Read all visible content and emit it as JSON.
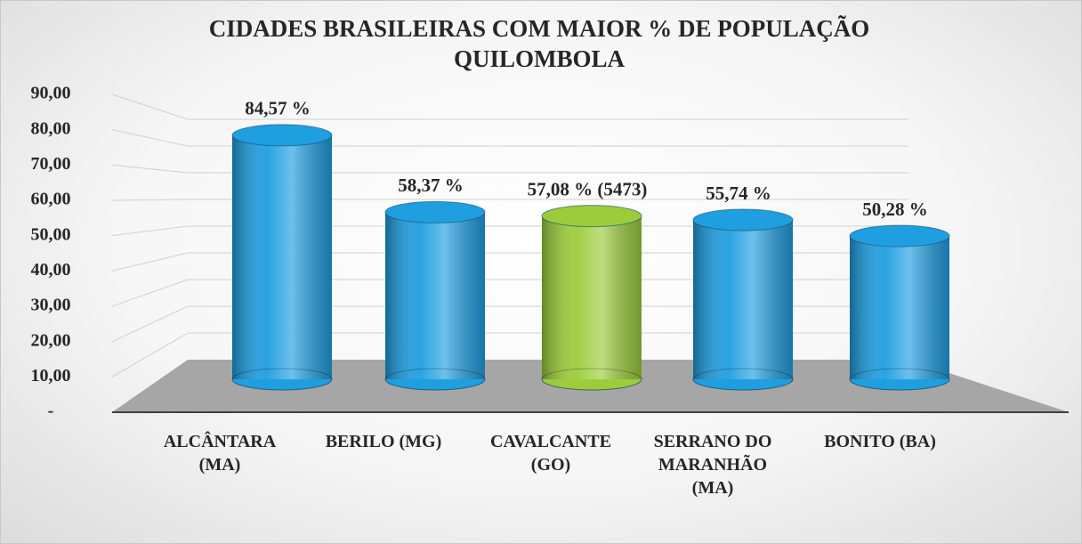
{
  "chart_data": {
    "type": "bar",
    "title": "CIDADES BRASILEIRAS COM MAIOR % DE POPULAÇÃO QUILOMBOLA",
    "categories": [
      "ALCÂNTARA (MA)",
      "BERILO (MG)",
      "CAVALCANTE (GO)",
      "SERRANO DO MARANHÃO (MA)",
      "BONITO (BA)"
    ],
    "values": [
      84.57,
      58.37,
      57.08,
      55.74,
      50.28
    ],
    "value_labels": [
      "84,57 %",
      "58,37 %",
      "57,08 % (5473)",
      "55,74 %",
      "50,28 %"
    ],
    "colors": [
      "#1f9ee0",
      "#1f9ee0",
      "#9ccc3c",
      "#1f9ee0",
      "#1f9ee0"
    ],
    "ylim": [
      0,
      90
    ],
    "yticks": [
      {
        "value": 0,
        "label": "-"
      },
      {
        "value": 10,
        "label": "10,00"
      },
      {
        "value": 20,
        "label": "20,00"
      },
      {
        "value": 30,
        "label": "30,00"
      },
      {
        "value": 40,
        "label": "40,00"
      },
      {
        "value": 50,
        "label": "50,00"
      },
      {
        "value": 60,
        "label": "60,00"
      },
      {
        "value": 70,
        "label": "70,00"
      },
      {
        "value": 80,
        "label": "80,00"
      },
      {
        "value": 90,
        "label": "90,00"
      }
    ],
    "grid": true
  }
}
